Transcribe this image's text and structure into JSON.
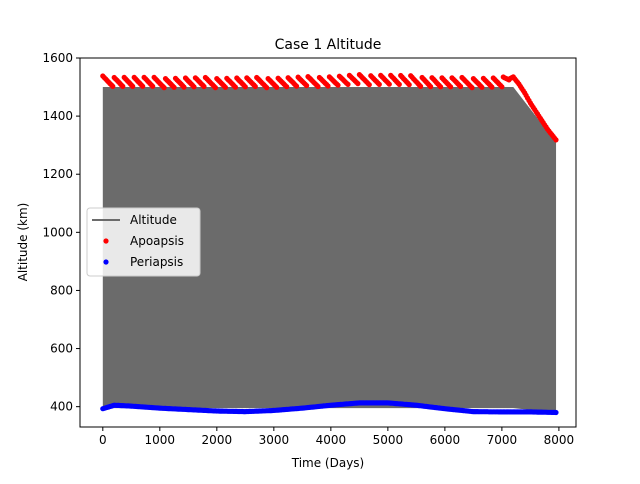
{
  "chart_data": {
    "type": "line",
    "title": "Case 1 Altitude",
    "xlabel": "Time (Days)",
    "ylabel": "Altitude (km)",
    "xlim": [
      -400,
      8300
    ],
    "ylim": [
      330,
      1600
    ],
    "xticks": [
      0,
      1000,
      2000,
      3000,
      4000,
      5000,
      6000,
      7000,
      8000
    ],
    "yticks": [
      400,
      600,
      800,
      1000,
      1200,
      1400,
      1600
    ],
    "grid": false,
    "legend_position": "center-left",
    "series": [
      {
        "name": "Altitude",
        "kind": "band",
        "color": "#6b6b6b",
        "x": [
          0,
          7200,
          7950
        ],
        "upper": [
          1500,
          1500,
          1310
        ],
        "lower": [
          395,
          395,
          380
        ]
      },
      {
        "name": "Apoapsis",
        "kind": "scatter",
        "color": "#ff0000",
        "x": [
          0,
          1000,
          2000,
          3000,
          4000,
          4500,
          5000,
          5500,
          6000,
          6500,
          7000,
          7200,
          7300,
          7400,
          7500,
          7600,
          7700,
          7800,
          7900,
          7950
        ],
        "y": [
          1520,
          1515,
          1515,
          1515,
          1520,
          1525,
          1525,
          1520,
          1515,
          1515,
          1515,
          1535,
          1510,
          1480,
          1445,
          1415,
          1385,
          1355,
          1330,
          1318
        ]
      },
      {
        "name": "Periapsis",
        "kind": "scatter",
        "color": "#0000ff",
        "x": [
          0,
          200,
          500,
          1000,
          1500,
          2000,
          2500,
          3000,
          3500,
          4000,
          4500,
          5000,
          5500,
          6000,
          6500,
          7000,
          7500,
          7950
        ],
        "y": [
          393,
          405,
          402,
          395,
          390,
          385,
          383,
          387,
          395,
          405,
          413,
          413,
          405,
          393,
          383,
          382,
          382,
          380
        ]
      }
    ]
  }
}
